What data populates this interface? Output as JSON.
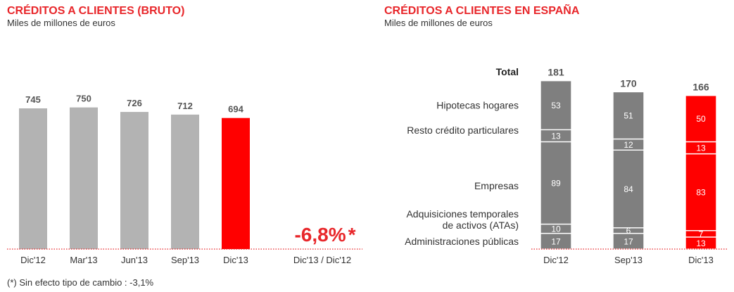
{
  "footnote": "(*) Sin efecto tipo de cambio : -3,1%",
  "colors": {
    "accent": "#e8262a",
    "bar_red": "#ff0000",
    "bar_light_gray": "#b3b3b3",
    "bar_dark_gray": "#7f7f7f"
  },
  "chart_data": [
    {
      "type": "bar",
      "title": "CRÉDITOS A CLIENTES (BRUTO)",
      "subtitle": "Miles de millones de euros",
      "categories": [
        "Dic'12",
        "Mar'13",
        "Jun'13",
        "Sep'13",
        "Dic'13"
      ],
      "values": [
        745,
        750,
        726,
        712,
        694
      ],
      "value_labels": [
        "745",
        "750",
        "726",
        "712",
        "694"
      ],
      "highlight_index": 4,
      "variation": {
        "value_label": "-6,8%",
        "marker": "*",
        "label": "Dic'13 / Dic'12"
      },
      "xlabel": "",
      "ylabel": "",
      "ylim": [
        0,
        800
      ]
    },
    {
      "type": "bar",
      "stacked": true,
      "title": "CRÉDITOS A CLIENTES EN ESPAÑA",
      "subtitle": "Miles de millones de euros",
      "categories": [
        "Dic'12",
        "Sep'13",
        "Dic'13"
      ],
      "total_label": "Total",
      "totals": [
        181,
        170,
        166
      ],
      "highlight_index": 2,
      "series": [
        {
          "name": "Administraciones públicas",
          "values": [
            17,
            17,
            13
          ]
        },
        {
          "name": "Adquisiciones temporales de activos (ATAs)",
          "values": [
            10,
            6,
            7
          ]
        },
        {
          "name": "Empresas",
          "values": [
            89,
            84,
            83
          ]
        },
        {
          "name": "Resto crédito particulares",
          "values": [
            13,
            12,
            13
          ]
        },
        {
          "name": "Hipotecas hogares",
          "values": [
            53,
            51,
            50
          ]
        }
      ],
      "legend_lines": {
        "Hipotecas hogares": [
          "Hipotecas hogares"
        ],
        "Resto crédito particulares": [
          "Resto crédito particulares"
        ],
        "Empresas": [
          "Empresas"
        ],
        "Adquisiciones temporales de activos (ATAs)": [
          "Adquisiciones temporales",
          "de activos (ATAs)"
        ],
        "Administraciones públicas": [
          "Administraciones públicas"
        ]
      },
      "xlabel": "",
      "ylabel": ""
    }
  ]
}
